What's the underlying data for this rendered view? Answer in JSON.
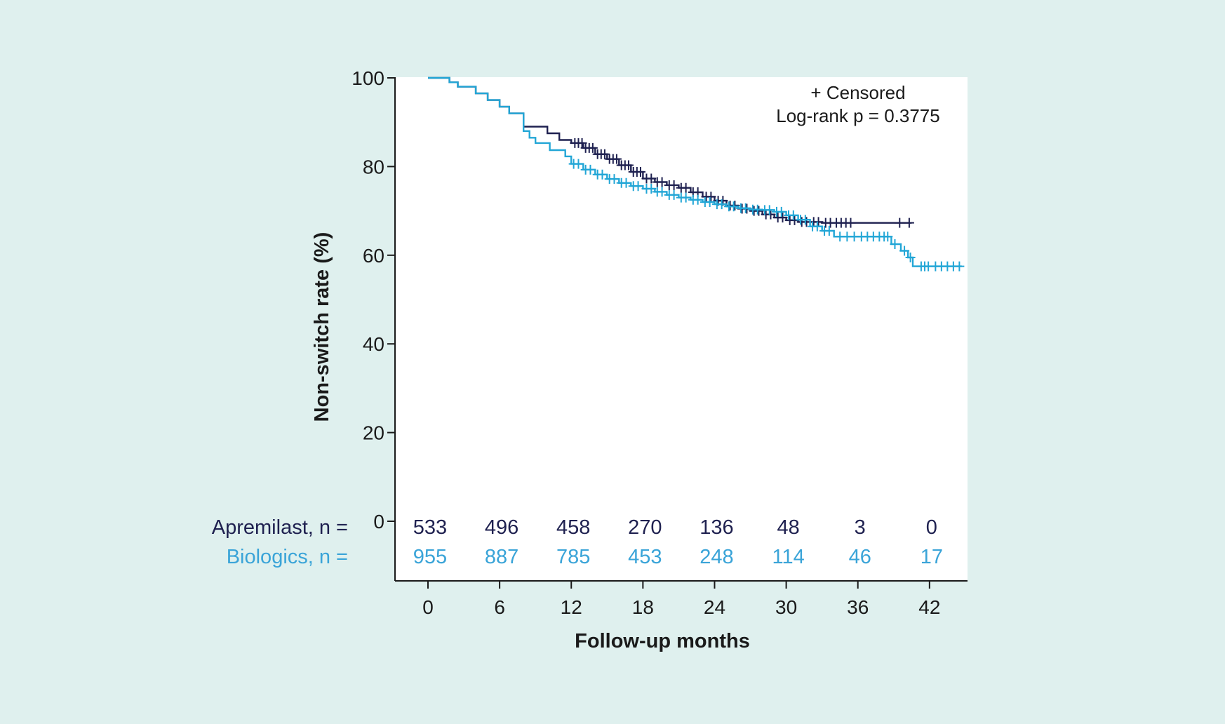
{
  "chart_data": {
    "type": "line",
    "subtype": "kaplan-meier",
    "title": "",
    "xlabel": "Follow-up months",
    "ylabel": "Non-switch rate (%)",
    "xlim": [
      -6,
      49
    ],
    "ylim": [
      0,
      100
    ],
    "x_ticks": [
      0,
      6,
      12,
      18,
      24,
      30,
      36,
      42
    ],
    "y_ticks": [
      0,
      20,
      40,
      60,
      80,
      100
    ],
    "grid": false,
    "annotations": [
      "+ Censored",
      "Log-rank p = 0.3775"
    ],
    "colors": {
      "apremilast": "#1f2150",
      "biologics": "#22a6d6"
    },
    "series": [
      {
        "name": "Apremilast",
        "color": "#1f2150",
        "steps": [
          [
            0,
            100
          ],
          [
            1.8,
            100
          ],
          [
            1.8,
            99
          ],
          [
            2.5,
            99
          ],
          [
            2.5,
            98
          ],
          [
            4,
            98
          ],
          [
            4,
            96.5
          ],
          [
            5,
            96.5
          ],
          [
            5,
            95
          ],
          [
            6,
            95
          ],
          [
            6,
            93.5
          ],
          [
            6.8,
            93.5
          ],
          [
            6.8,
            92
          ],
          [
            8,
            92
          ],
          [
            8,
            89
          ],
          [
            10,
            89
          ],
          [
            10,
            87.5
          ],
          [
            11,
            87.5
          ],
          [
            11,
            86
          ],
          [
            12,
            86
          ],
          [
            12,
            85.3
          ],
          [
            13,
            85.3
          ],
          [
            13,
            84.2
          ],
          [
            14,
            84.2
          ],
          [
            14,
            82.8
          ],
          [
            15,
            82.8
          ],
          [
            15,
            81.7
          ],
          [
            16,
            81.7
          ],
          [
            16,
            80.3
          ],
          [
            17,
            80.3
          ],
          [
            17,
            78.8
          ],
          [
            18,
            78.8
          ],
          [
            18,
            77.3
          ],
          [
            19,
            77.3
          ],
          [
            19,
            76.5
          ],
          [
            20,
            76.5
          ],
          [
            20,
            75.8
          ],
          [
            21,
            75.8
          ],
          [
            21,
            75.2
          ],
          [
            22,
            75.2
          ],
          [
            22,
            74.2
          ],
          [
            23,
            74.2
          ],
          [
            23,
            73.2
          ],
          [
            24,
            73.2
          ],
          [
            24,
            72.3
          ],
          [
            25,
            72.3
          ],
          [
            25,
            71.2
          ],
          [
            26,
            71.2
          ],
          [
            26,
            70.5
          ],
          [
            27,
            70.5
          ],
          [
            27,
            70
          ],
          [
            28,
            70
          ],
          [
            28,
            69.2
          ],
          [
            29,
            69.2
          ],
          [
            29,
            68.5
          ],
          [
            30,
            68.5
          ],
          [
            30,
            67.9
          ],
          [
            31,
            67.9
          ],
          [
            31,
            67.5
          ],
          [
            33,
            67.5
          ],
          [
            33,
            67.3
          ],
          [
            40.5,
            67.3
          ]
        ],
        "censored": [
          [
            12.3,
            85.3
          ],
          [
            12.6,
            85.3
          ],
          [
            12.9,
            85.3
          ],
          [
            13.2,
            84.2
          ],
          [
            13.5,
            84.2
          ],
          [
            13.8,
            84.2
          ],
          [
            14.2,
            82.8
          ],
          [
            14.5,
            82.8
          ],
          [
            14.8,
            82.8
          ],
          [
            15.2,
            81.7
          ],
          [
            15.5,
            81.7
          ],
          [
            15.8,
            81.7
          ],
          [
            16.2,
            80.3
          ],
          [
            16.5,
            80.3
          ],
          [
            16.8,
            80.3
          ],
          [
            17.2,
            78.8
          ],
          [
            17.5,
            78.8
          ],
          [
            17.8,
            78.8
          ],
          [
            18.3,
            77.3
          ],
          [
            18.7,
            77.3
          ],
          [
            19.2,
            76.5
          ],
          [
            19.6,
            76.5
          ],
          [
            20.2,
            75.8
          ],
          [
            20.6,
            75.8
          ],
          [
            21.2,
            75.2
          ],
          [
            21.6,
            75.2
          ],
          [
            22.2,
            74.2
          ],
          [
            22.6,
            74.2
          ],
          [
            23.3,
            73.2
          ],
          [
            23.7,
            73.2
          ],
          [
            24.3,
            72.3
          ],
          [
            24.7,
            72.3
          ],
          [
            25.3,
            71.2
          ],
          [
            25.7,
            71.2
          ],
          [
            26.3,
            70.5
          ],
          [
            26.7,
            70.5
          ],
          [
            27.3,
            70
          ],
          [
            27.7,
            70
          ],
          [
            28.3,
            69.2
          ],
          [
            28.7,
            69.2
          ],
          [
            29.3,
            68.5
          ],
          [
            29.7,
            68.5
          ],
          [
            30.3,
            67.9
          ],
          [
            30.7,
            67.9
          ],
          [
            31.3,
            67.5
          ],
          [
            31.7,
            67.5
          ],
          [
            32.3,
            67.5
          ],
          [
            32.7,
            67.5
          ],
          [
            33.3,
            67.3
          ],
          [
            33.7,
            67.3
          ],
          [
            34.2,
            67.3
          ],
          [
            34.6,
            67.3
          ],
          [
            35,
            67.3
          ],
          [
            35.4,
            67.3
          ],
          [
            39.5,
            67.3
          ],
          [
            40.3,
            67.3
          ]
        ]
      },
      {
        "name": "Biologics",
        "color": "#22a6d6",
        "steps": [
          [
            0,
            100
          ],
          [
            1.8,
            100
          ],
          [
            1.8,
            99
          ],
          [
            2.5,
            99
          ],
          [
            2.5,
            98
          ],
          [
            4,
            98
          ],
          [
            4,
            96.5
          ],
          [
            5,
            96.5
          ],
          [
            5,
            95
          ],
          [
            6,
            95
          ],
          [
            6,
            93.5
          ],
          [
            6.8,
            93.5
          ],
          [
            6.8,
            92
          ],
          [
            8,
            92
          ],
          [
            8,
            88
          ],
          [
            8.5,
            88
          ],
          [
            8.5,
            86.5
          ],
          [
            9,
            86.5
          ],
          [
            9,
            85.3
          ],
          [
            10.2,
            85.3
          ],
          [
            10.2,
            83.7
          ],
          [
            11.5,
            83.7
          ],
          [
            11.5,
            82.3
          ],
          [
            12,
            82.3
          ],
          [
            12,
            80.6
          ],
          [
            13,
            80.6
          ],
          [
            13,
            79.3
          ],
          [
            14,
            79.3
          ],
          [
            14,
            78.2
          ],
          [
            15,
            78.2
          ],
          [
            15,
            77.2
          ],
          [
            16,
            77.2
          ],
          [
            16,
            76.3
          ],
          [
            17,
            76.3
          ],
          [
            17,
            75.6
          ],
          [
            18,
            75.6
          ],
          [
            18,
            75
          ],
          [
            19,
            75
          ],
          [
            19,
            74.3
          ],
          [
            20,
            74.3
          ],
          [
            20,
            73.6
          ],
          [
            21,
            73.6
          ],
          [
            21,
            73
          ],
          [
            22,
            73
          ],
          [
            22,
            72.5
          ],
          [
            23,
            72.5
          ],
          [
            23,
            72
          ],
          [
            24,
            72
          ],
          [
            24,
            71.5
          ],
          [
            25,
            71.5
          ],
          [
            25,
            71
          ],
          [
            26,
            71
          ],
          [
            26,
            70.6
          ],
          [
            27,
            70.6
          ],
          [
            27,
            70.3
          ],
          [
            28,
            70.3
          ],
          [
            28,
            70.2
          ],
          [
            29,
            70.2
          ],
          [
            29,
            69.8
          ],
          [
            30,
            69.8
          ],
          [
            30,
            69
          ],
          [
            31,
            69
          ],
          [
            31,
            68
          ],
          [
            32,
            68
          ],
          [
            32,
            66.5
          ],
          [
            33,
            66.5
          ],
          [
            33,
            65.5
          ],
          [
            34,
            65.5
          ],
          [
            34,
            64.2
          ],
          [
            38.8,
            64.2
          ],
          [
            38.8,
            62.5
          ],
          [
            39.6,
            62.5
          ],
          [
            39.6,
            61
          ],
          [
            40.2,
            61
          ],
          [
            40.2,
            59.5
          ],
          [
            40.6,
            59.5
          ],
          [
            40.6,
            57.5
          ],
          [
            44.7,
            57.5
          ]
        ],
        "censored": [
          [
            12.2,
            80.6
          ],
          [
            12.6,
            80.6
          ],
          [
            13.2,
            79.3
          ],
          [
            13.6,
            79.3
          ],
          [
            14.2,
            78.2
          ],
          [
            14.6,
            78.2
          ],
          [
            15.2,
            77.2
          ],
          [
            15.6,
            77.2
          ],
          [
            16.2,
            76.3
          ],
          [
            16.6,
            76.3
          ],
          [
            17.2,
            75.6
          ],
          [
            17.6,
            75.6
          ],
          [
            18.3,
            75
          ],
          [
            18.7,
            75
          ],
          [
            19.2,
            74.3
          ],
          [
            19.6,
            74.3
          ],
          [
            20.2,
            73.6
          ],
          [
            20.6,
            73.6
          ],
          [
            21.2,
            73
          ],
          [
            21.6,
            73
          ],
          [
            22.2,
            72.5
          ],
          [
            22.6,
            72.5
          ],
          [
            23.2,
            72
          ],
          [
            23.6,
            72
          ],
          [
            24.2,
            71.5
          ],
          [
            24.6,
            71.5
          ],
          [
            25.2,
            71
          ],
          [
            25.6,
            71
          ],
          [
            26.2,
            70.6
          ],
          [
            26.6,
            70.6
          ],
          [
            27.2,
            70.3
          ],
          [
            27.6,
            70.3
          ],
          [
            28.2,
            70.2
          ],
          [
            28.6,
            70.2
          ],
          [
            29.2,
            69.8
          ],
          [
            29.6,
            69.8
          ],
          [
            30.2,
            69
          ],
          [
            30.6,
            69
          ],
          [
            31.2,
            68
          ],
          [
            31.6,
            68
          ],
          [
            32.2,
            66.5
          ],
          [
            32.6,
            66.5
          ],
          [
            33.2,
            65.5
          ],
          [
            33.6,
            65.5
          ],
          [
            34.5,
            64.2
          ],
          [
            35.1,
            64.2
          ],
          [
            35.7,
            64.2
          ],
          [
            36.3,
            64.2
          ],
          [
            36.8,
            64.2
          ],
          [
            37.3,
            64.2
          ],
          [
            37.8,
            64.2
          ],
          [
            38.2,
            64.2
          ],
          [
            38.5,
            64.2
          ],
          [
            39.1,
            62.5
          ],
          [
            39.9,
            61
          ],
          [
            40.4,
            59.5
          ],
          [
            41.3,
            57.5
          ],
          [
            41.6,
            57.5
          ],
          [
            41.9,
            57.5
          ],
          [
            42.5,
            57.5
          ],
          [
            43,
            57.5
          ],
          [
            43.5,
            57.5
          ],
          [
            44,
            57.5
          ],
          [
            44.5,
            57.5
          ]
        ]
      }
    ],
    "risk_table": {
      "times": [
        0,
        6,
        12,
        18,
        24,
        30,
        36,
        42
      ],
      "rows": [
        {
          "label": "Apremilast, n =",
          "color": "#1f2150",
          "values": [
            "533",
            "496",
            "458",
            "270",
            "136",
            "48",
            "3",
            "0"
          ]
        },
        {
          "label": "Biologics, n =",
          "color": "#3aa4d8",
          "values": [
            "955",
            "887",
            "785",
            "453",
            "248",
            "114",
            "46",
            "17"
          ]
        }
      ]
    }
  }
}
